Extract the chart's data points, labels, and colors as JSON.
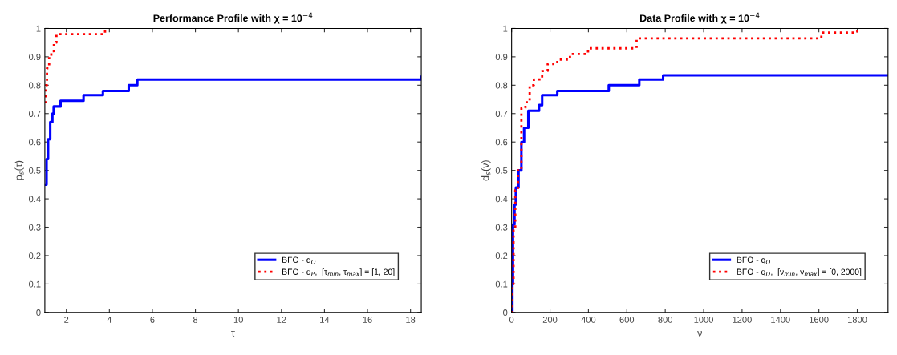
{
  "chart_data": [
    {
      "type": "step",
      "title": "Performance Profile with χ = 10$^{−4}$",
      "xlabel": "τ",
      "ylabel": "p$_{s}$(τ)",
      "xlim": [
        1,
        18.5
      ],
      "xticks": [
        2,
        4,
        6,
        8,
        10,
        12,
        14,
        16,
        18
      ],
      "ylim": [
        0,
        1
      ],
      "yticks": [
        0,
        0.1,
        0.2,
        0.3,
        0.4,
        0.5,
        0.6,
        0.7,
        0.8,
        0.9,
        1
      ],
      "grid": false,
      "legend": "bottom right",
      "series": [
        {
          "name": "BFO - q$_{O}$",
          "color": "#0000ff",
          "line_style": "solid",
          "x": [
            1,
            1.08,
            1.15,
            1.25,
            1.35,
            1.41,
            1.73,
            2.8,
            3.7,
            4.9,
            5.3,
            18.45,
            18.5
          ],
          "values": [
            0.45,
            0.54,
            0.61,
            0.67,
            0.7,
            0.725,
            0.745,
            0.765,
            0.78,
            0.8,
            0.82,
            0.82,
            0.83
          ]
        },
        {
          "name": "BFO - q$_{P}$,  [τ$_{min}$, τ$_{max}$] = [1, 20]",
          "color": "#ff0000",
          "line_style": "dotted",
          "x": [
            1,
            1.05,
            1.1,
            1.2,
            1.3,
            1.42,
            1.54,
            3.77,
            3.8
          ],
          "values": [
            0.74,
            0.8,
            0.86,
            0.9,
            0.92,
            0.95,
            0.98,
            0.98,
            1
          ]
        }
      ]
    },
    {
      "type": "step",
      "title": "Data Profile with χ = 10$^{−4}$",
      "xlabel": "ν",
      "ylabel": "d$_{s}$(ν)",
      "xlim": [
        0,
        1960
      ],
      "xticks": [
        0,
        200,
        400,
        600,
        800,
        1000,
        1200,
        1400,
        1600,
        1800
      ],
      "ylim": [
        0,
        1
      ],
      "yticks": [
        0,
        0.1,
        0.2,
        0.3,
        0.4,
        0.5,
        0.6,
        0.7,
        0.8,
        0.9,
        1
      ],
      "grid": false,
      "legend": "bottom right",
      "series": [
        {
          "name": "BFO - q$_{O}$",
          "color": "#0000ff",
          "line_style": "solid",
          "x": [
            0,
            4,
            7,
            15,
            22,
            36,
            51,
            65,
            87,
            143,
            159,
            238,
            506,
            665,
            789,
            1960
          ],
          "values": [
            0,
            0.1,
            0.31,
            0.38,
            0.44,
            0.5,
            0.6,
            0.65,
            0.71,
            0.73,
            0.765,
            0.78,
            0.8,
            0.82,
            0.835,
            0.835
          ]
        },
        {
          "name": "BFO - q$_{D}$,  [ν$_{min}$, ν$_{max}$] = [0, 2000]",
          "color": "#ff0000",
          "line_style": "dotted",
          "x": [
            0,
            4,
            10,
            19,
            33,
            51,
            72,
            94,
            116,
            159,
            188,
            238,
            304,
            398,
            651,
            1613,
            1796,
            1800
          ],
          "values": [
            0,
            0.1,
            0.3,
            0.43,
            0.5,
            0.72,
            0.74,
            0.8,
            0.82,
            0.85,
            0.875,
            0.89,
            0.91,
            0.93,
            0.965,
            0.985,
            0.985,
            1
          ]
        }
      ]
    }
  ]
}
